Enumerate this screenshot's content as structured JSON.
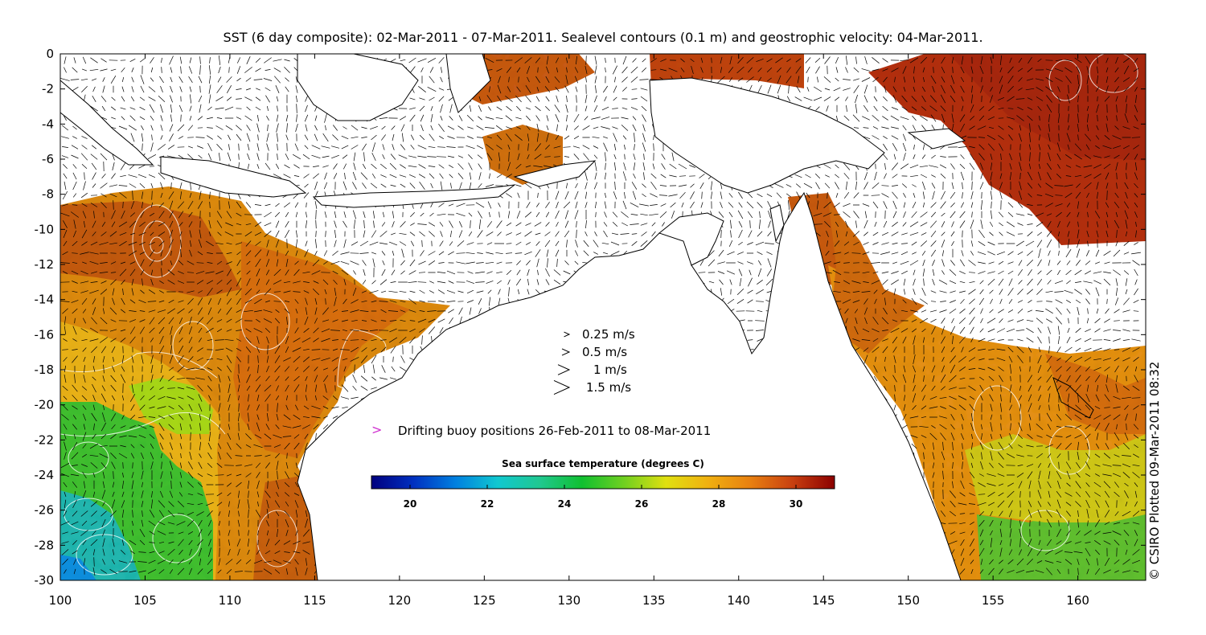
{
  "title": "SST (6 day composite): 02-Mar-2011 - 07-Mar-2011. Sealevel contours (0.1 m) and geostrophic velocity: 04-Mar-2011.",
  "credit": "© CSIRO Plotted 09-Mar-2011 08:32",
  "axes": {
    "x_ticks": [
      "100",
      "105",
      "110",
      "115",
      "120",
      "125",
      "130",
      "135",
      "140",
      "145",
      "150",
      "155",
      "160"
    ],
    "y_ticks": [
      "0",
      "-2",
      "-4",
      "-6",
      "-8",
      "-10",
      "-12",
      "-14",
      "-16",
      "-18",
      "-20",
      "-22",
      "-24",
      "-26",
      "-28",
      "-30"
    ],
    "lon_range": [
      100,
      164
    ],
    "lat_range": [
      -30,
      0
    ]
  },
  "velocity_legend": [
    {
      "label": "0.25 m/s",
      "speed": 0.25
    },
    {
      "label": "0.5 m/s",
      "speed": 0.5
    },
    {
      "label": "1 m/s",
      "speed": 1
    },
    {
      "label": "1.5 m/s",
      "speed": 1.5
    }
  ],
  "buoy_legend": {
    "label": "Drifting buoy positions 26-Feb-2011 to 08-Mar-2011",
    "color": "#d030d0"
  },
  "colorbar": {
    "title": "Sea surface temperature (degrees C)",
    "ticks": [
      "20",
      "22",
      "24",
      "26",
      "28",
      "30"
    ],
    "range": [
      19,
      31
    ],
    "colors": [
      "#00007f",
      "#0030c0",
      "#0080e0",
      "#10c8d0",
      "#20c890",
      "#10c030",
      "#70d020",
      "#e0e010",
      "#f0b010",
      "#e88010",
      "#c84010",
      "#8c0000"
    ]
  },
  "colors": {
    "land": "#ffffff",
    "coast": "#000000",
    "contour": "#ffffff",
    "arrow": "#000000"
  }
}
